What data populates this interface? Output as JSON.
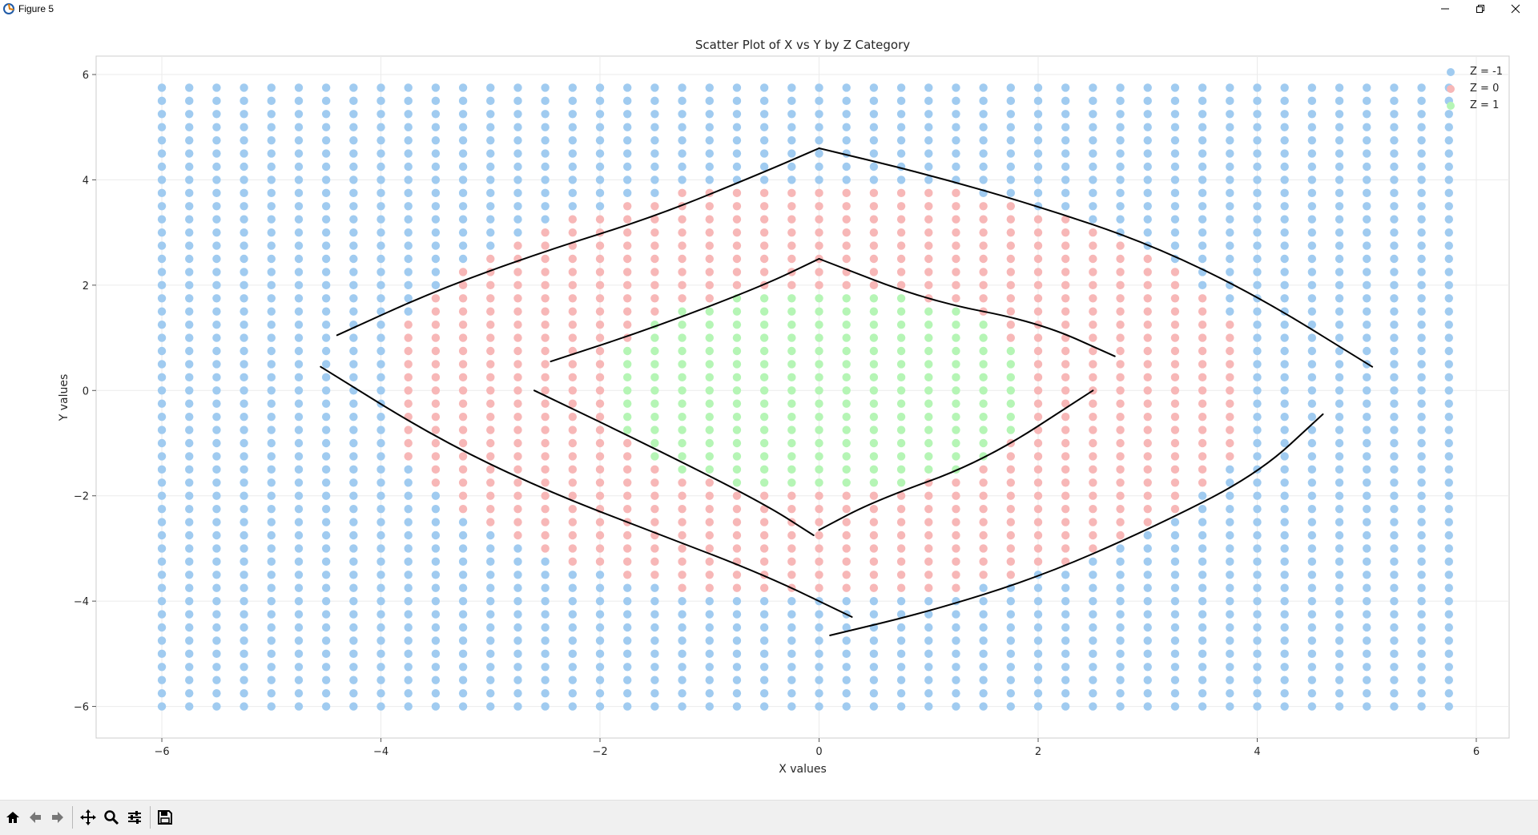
{
  "window": {
    "title": "Figure 5",
    "icons": [
      "app-icon",
      "minimize-icon",
      "restore-icon",
      "close-icon"
    ]
  },
  "toolbar": {
    "buttons": [
      "home-icon",
      "back-icon",
      "forward-icon",
      "pan-icon",
      "zoom-icon",
      "configure-subplots-icon",
      "save-icon"
    ]
  },
  "chart_data": {
    "type": "scatter",
    "title": "Scatter Plot of X vs Y by Z Category",
    "xlabel": "X values",
    "ylabel": "Y values",
    "xlim": [
      -6.6,
      6.3
    ],
    "ylim": [
      -6.6,
      6.35
    ],
    "xticks": [
      -6,
      -4,
      -2,
      0,
      2,
      4,
      6
    ],
    "yticks": [
      -6,
      -4,
      -2,
      0,
      2,
      4,
      6
    ],
    "xtick_labels": [
      "−6",
      "−4",
      "−2",
      "0",
      "2",
      "4",
      "6"
    ],
    "ytick_labels": [
      "−6",
      "−4",
      "−2",
      "0",
      "2",
      "4",
      "6"
    ],
    "grid": true,
    "legend_position": "top-right",
    "grid_x": {
      "start": -6,
      "step": 0.25,
      "count": 48
    },
    "grid_y": {
      "start": -6,
      "step": 0.25,
      "count": 48
    },
    "classification": {
      "inner_radius": 2.0,
      "outer_radius": 4.0,
      "norm": "euclidean",
      "gap_offset": 0.5
    },
    "series": [
      {
        "name": "Z = -1",
        "z": -1,
        "color": "#a0cbf0"
      },
      {
        "name": "Z = 0",
        "z": 0,
        "color": "#f7b7b7"
      },
      {
        "name": "Z = 1",
        "z": 1,
        "color": "#b5f5b5"
      }
    ],
    "annotations": [
      {
        "type": "freehand-stroke",
        "points": [
          [
            -4.4,
            1.05
          ],
          [
            -3.5,
            1.9
          ],
          [
            -2.5,
            2.65
          ],
          [
            -1.5,
            3.3
          ],
          [
            -0.5,
            4.15
          ],
          [
            0.0,
            4.6
          ]
        ]
      },
      {
        "type": "freehand-stroke",
        "points": [
          [
            0.0,
            4.6
          ],
          [
            1.0,
            4.1
          ],
          [
            2.0,
            3.5
          ],
          [
            3.0,
            2.8
          ],
          [
            4.0,
            1.8
          ],
          [
            5.05,
            0.45
          ]
        ]
      },
      {
        "type": "freehand-stroke",
        "points": [
          [
            -4.55,
            0.45
          ],
          [
            -3.5,
            -0.9
          ],
          [
            -2.5,
            -1.9
          ],
          [
            -1.5,
            -2.7
          ],
          [
            -0.5,
            -3.5
          ],
          [
            0.3,
            -4.3
          ]
        ]
      },
      {
        "type": "freehand-stroke",
        "points": [
          [
            0.1,
            -4.65
          ],
          [
            1.0,
            -4.2
          ],
          [
            2.0,
            -3.55
          ],
          [
            3.0,
            -2.65
          ],
          [
            4.0,
            -1.6
          ],
          [
            4.6,
            -0.45
          ]
        ]
      },
      {
        "type": "freehand-stroke",
        "points": [
          [
            -2.45,
            0.55
          ],
          [
            -1.5,
            1.2
          ],
          [
            -0.5,
            2.0
          ],
          [
            0.0,
            2.5
          ]
        ]
      },
      {
        "type": "freehand-stroke",
        "points": [
          [
            0.0,
            2.5
          ],
          [
            1.0,
            1.7
          ],
          [
            2.0,
            1.3
          ],
          [
            2.7,
            0.65
          ]
        ]
      },
      {
        "type": "freehand-stroke",
        "points": [
          [
            -2.6,
            0.0
          ],
          [
            -1.5,
            -1.1
          ],
          [
            -0.5,
            -2.15
          ],
          [
            -0.05,
            -2.75
          ]
        ]
      },
      {
        "type": "freehand-stroke",
        "points": [
          [
            0.0,
            -2.65
          ],
          [
            0.5,
            -2.1
          ],
          [
            1.5,
            -1.35
          ],
          [
            2.5,
            0.0
          ]
        ]
      }
    ]
  }
}
